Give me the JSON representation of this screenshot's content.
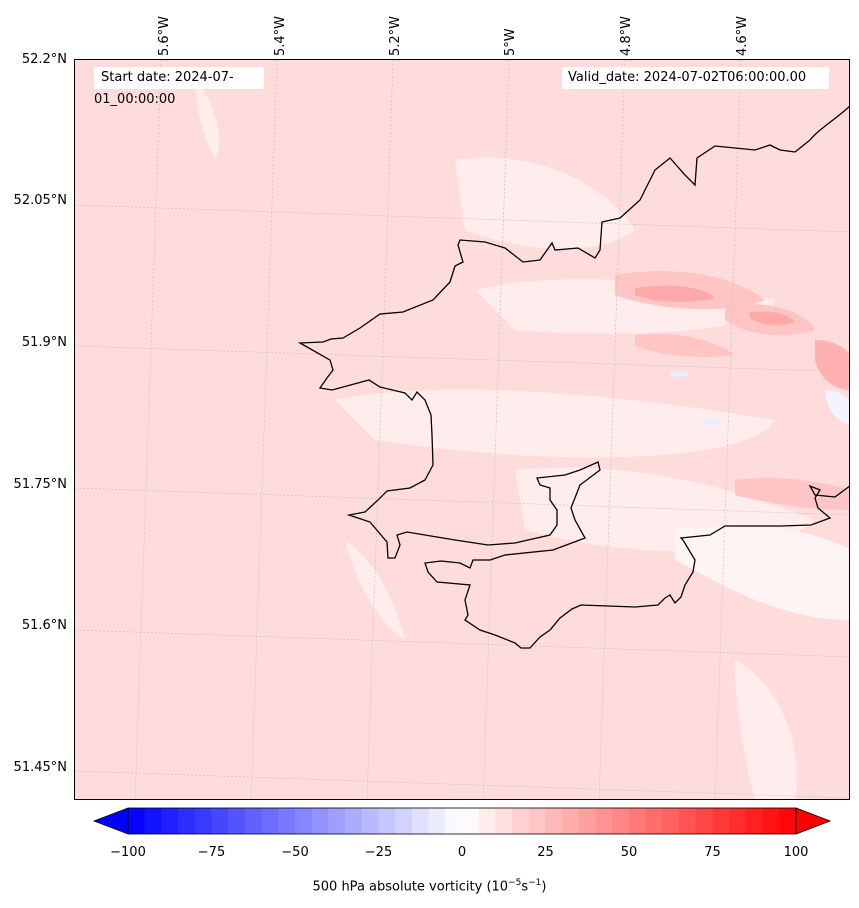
{
  "map": {
    "start_date": "Start date: 2024-07-01_00:00:00",
    "valid_date": "Valid_date: 2024-07-02T06:00:00.00",
    "lat_labels": [
      "52.2°N",
      "52.05°N",
      "51.9°N",
      "51.75°N",
      "51.6°N",
      "51.45°N"
    ],
    "lon_labels": [
      "5.6°W",
      "5.4°W",
      "5.2°W",
      "5°W",
      "4.8°W",
      "4.6°W"
    ],
    "field_colors": {
      "base": "#ffdcdc",
      "light": "#ffecec",
      "mid": "#ffc4c4",
      "strong": "#ffa8a8",
      "neg": "#e8eeff"
    },
    "coastline_color": "#000000"
  },
  "colorbar": {
    "ticks": [
      "−100",
      "−75",
      "−50",
      "−25",
      "0",
      "25",
      "50",
      "75",
      "100"
    ],
    "label": "500 hPa absolute vorticity (10",
    "label_exp1": "−5",
    "label_mid": "s",
    "label_exp2": "−1",
    "label_end": ")",
    "range": [
      -100,
      100
    ],
    "min_color": "#0000ff",
    "max_color": "#ff0000"
  }
}
